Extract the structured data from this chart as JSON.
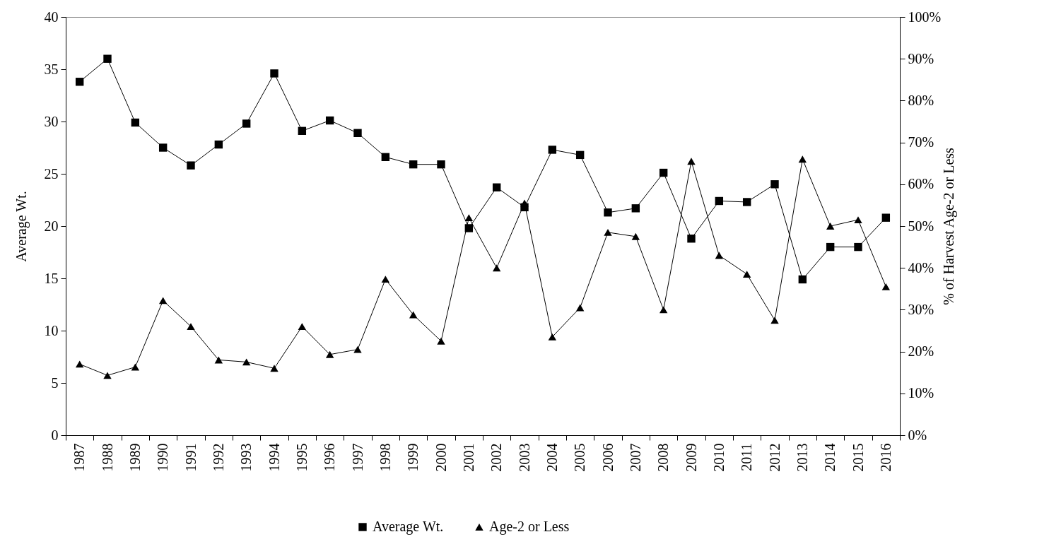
{
  "chart_data": {
    "type": "line",
    "categories": [
      "1987",
      "1988",
      "1989",
      "1990",
      "1991",
      "1992",
      "1993",
      "1994",
      "1995",
      "1996",
      "1997",
      "1998",
      "1999",
      "2000",
      "2001",
      "2002",
      "2003",
      "2004",
      "2005",
      "2006",
      "2007",
      "2008",
      "2009",
      "2010",
      "2011",
      "2012",
      "2013",
      "2014",
      "2015",
      "2016"
    ],
    "ylabel": "Average Wt.",
    "y2label": "% of Harvest Age-2 or Less",
    "series": [
      {
        "name": "Average Wt.",
        "color": "#000000",
        "marker": "square",
        "values": [
          33.8,
          36.0,
          29.9,
          27.5,
          25.8,
          27.8,
          29.8,
          34.6,
          29.1,
          30.1,
          28.9,
          26.6,
          25.9,
          25.9,
          19.8,
          23.7,
          21.8,
          27.3,
          26.8,
          21.3,
          21.7,
          25.1,
          18.8,
          22.4,
          22.3,
          24.0,
          14.9,
          18.0,
          18.0,
          20.8
        ]
      },
      {
        "name": "Age-2 or Less",
        "color": "#000000",
        "marker": "triangle",
        "axis": "y2",
        "values": [
          17,
          14.3,
          16.3,
          32.2,
          26,
          18,
          17.5,
          16,
          26,
          19.3,
          20.5,
          37.3,
          28.8,
          22.5,
          52,
          40,
          55.5,
          23.5,
          30.5,
          48.5,
          47.5,
          30,
          65.5,
          43,
          38.5,
          27.5,
          66,
          50,
          51.5,
          35.5
        ]
      }
    ],
    "ylim": [
      0,
      40
    ],
    "yticks": [
      0,
      5,
      10,
      15,
      20,
      25,
      30,
      35,
      40
    ],
    "y2lim": [
      0,
      100
    ],
    "y2ticks": [
      {
        "value": 0,
        "label": "0%"
      },
      {
        "value": 10,
        "label": "10%"
      },
      {
        "value": 20,
        "label": "20%"
      },
      {
        "value": 30,
        "label": "30%"
      },
      {
        "value": 40,
        "label": "40%"
      },
      {
        "value": 50,
        "label": "50%"
      },
      {
        "value": 60,
        "label": "60%"
      },
      {
        "value": 70,
        "label": "70%"
      },
      {
        "value": 80,
        "label": "80%"
      },
      {
        "value": 90,
        "label": "90%"
      },
      {
        "value": 100,
        "label": "100%"
      }
    ],
    "grid": false,
    "legend": "bottom",
    "line_style": "solid"
  }
}
